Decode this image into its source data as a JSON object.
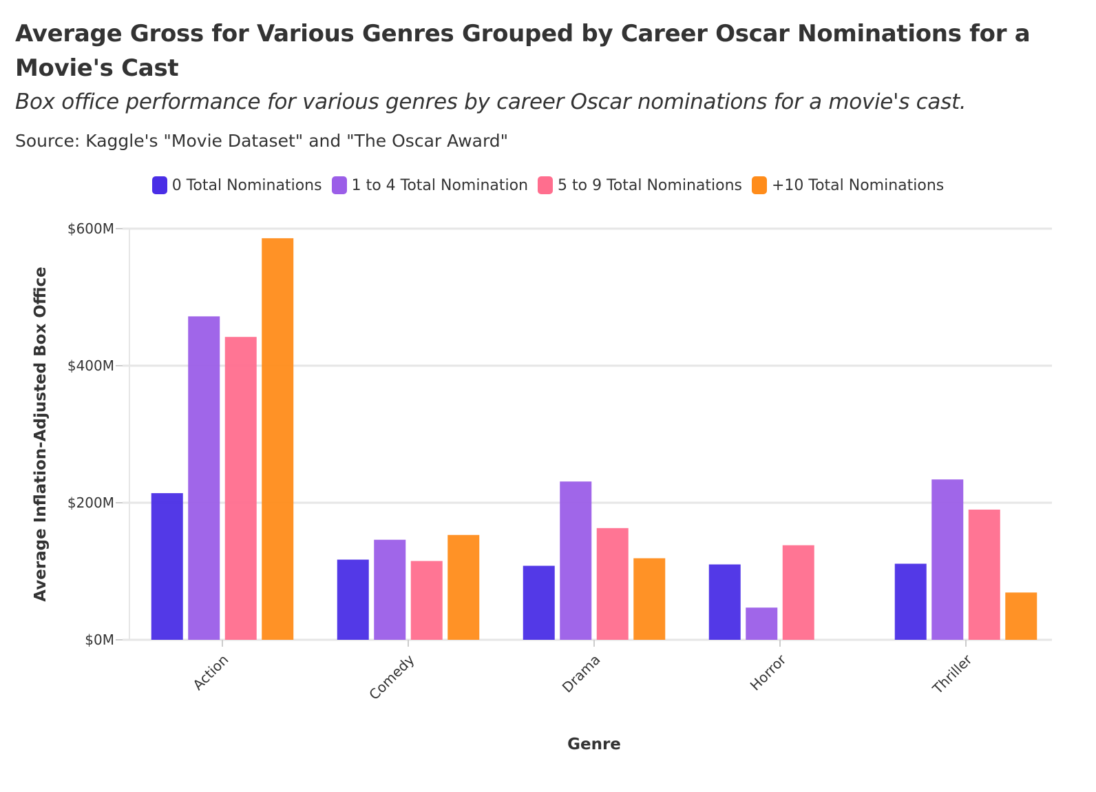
{
  "header": {
    "title": "Average Gross for Various Genres Grouped by Career Oscar Nominations for a Movie's Cast",
    "subtitle": "Box office performance for various genres by career Oscar nominations for a movie's cast.",
    "source": "Source: Kaggle's \"Movie Dataset\" and \"The Oscar Award\""
  },
  "chart_data": {
    "type": "bar",
    "title": "Average Gross for Various Genres Grouped by Career Oscar Nominations for a Movie's Cast",
    "subtitle": "Box office performance for various genres by career Oscar nominations for a movie's cast.",
    "xlabel": "Genre",
    "ylabel": "Average Inflation-Adjusted Box Office",
    "categories": [
      "Action",
      "Comedy",
      "Drama",
      "Horror",
      "Thriller"
    ],
    "ylim": [
      0,
      600
    ],
    "yticks": [
      0,
      200,
      400,
      600
    ],
    "ytick_labels": [
      "$0M",
      "$200M",
      "$400M",
      "$600M"
    ],
    "grid": true,
    "legend_position": "top-center",
    "series": [
      {
        "name": "0 Total Nominations",
        "color": "#4a2ee6",
        "values": [
          214,
          117,
          108,
          110,
          111
        ]
      },
      {
        "name": "1 to 4 Total Nomination",
        "color": "#9b5ee8",
        "values": [
          472,
          146,
          231,
          47,
          234
        ]
      },
      {
        "name": "5 to 9 Total Nominations",
        "color": "#ff6e8e",
        "values": [
          442,
          115,
          163,
          138,
          190
        ]
      },
      {
        "name": "+10 Total Nominations",
        "color": "#ff8c1a",
        "values": [
          586,
          153,
          119,
          null,
          69
        ]
      }
    ]
  }
}
